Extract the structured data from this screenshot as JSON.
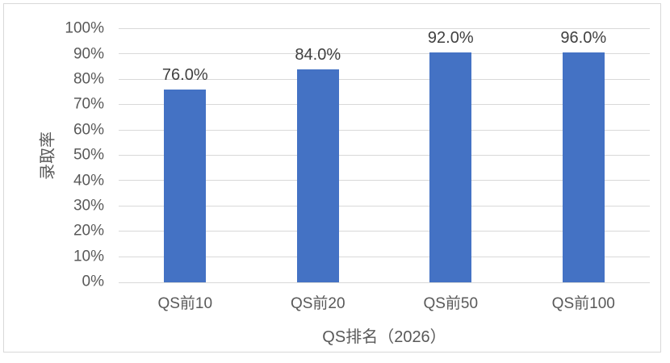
{
  "chart_data": {
    "type": "bar",
    "title": "",
    "categories": [
      "QS前10",
      "QS前20",
      "QS前50",
      "QS前100"
    ],
    "values": [
      76.0,
      84.0,
      92.0,
      96.0
    ],
    "data_labels": [
      "76.0%",
      "84.0%",
      "92.0%",
      "96.0%"
    ],
    "xlabel": "QS排名（2026）",
    "ylabel": "录取率",
    "ylim": [
      0,
      100
    ],
    "ytick_step": 10,
    "ytick_labels": [
      "0%",
      "10%",
      "20%",
      "30%",
      "40%",
      "50%",
      "60%",
      "70%",
      "80%",
      "90%",
      "100%"
    ],
    "grid": true,
    "legend": "none",
    "colors": {
      "bar": "#4472C4",
      "gridline": "#D9D9D9",
      "axis_line": "#D9D9D9",
      "frame": "#D9D9D9",
      "tick_label": "#595959",
      "axis_title": "#595959",
      "data_label": "#404040"
    }
  }
}
